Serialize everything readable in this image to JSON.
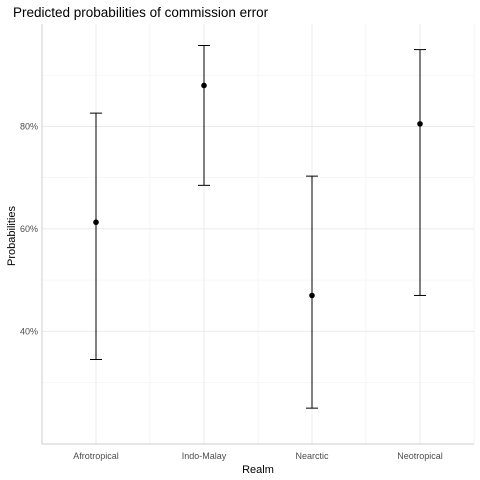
{
  "chart_data": {
    "type": "scatter",
    "title": "Predicted probabilities of commission error",
    "xlabel": "Realm",
    "ylabel": "Probabilities",
    "categories": [
      "Afrotropical",
      "Indo-Malay",
      "Nearctic",
      "Neotropical"
    ],
    "series": [
      {
        "estimate": [
          0.613,
          0.88,
          0.47,
          0.805
        ],
        "lower": [
          0.345,
          0.685,
          0.25,
          0.47
        ],
        "upper": [
          0.826,
          0.958,
          0.703,
          0.95
        ]
      }
    ],
    "ylim": [
      0.18,
      1.0
    ],
    "yticks": [
      0.4,
      0.6,
      0.8
    ],
    "ytick_labels": [
      "40%",
      "60%",
      "80%"
    ],
    "grid": true,
    "legend": "none",
    "colors": {
      "points": "#000000",
      "errorbars": "#000000",
      "grid": "#ebebeb",
      "tick_text": "#4d4d4d"
    }
  }
}
